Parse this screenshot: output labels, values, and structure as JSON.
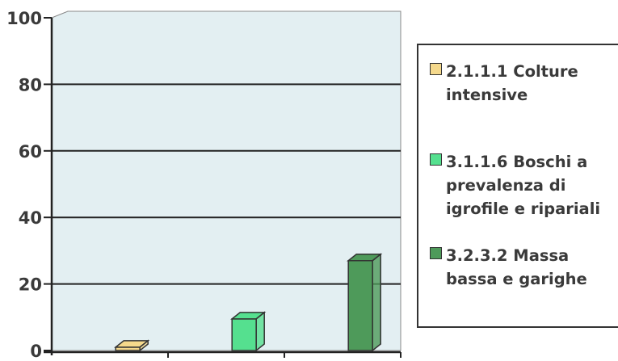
{
  "chart_data": {
    "type": "bar",
    "ylim": [
      0,
      100
    ],
    "y_ticks": [
      "0",
      "20",
      "40",
      "60",
      "80",
      "100"
    ],
    "grid": true,
    "legend_position": "right",
    "series": [
      {
        "name": "2.1.1.1 Colture intensive",
        "value": 1,
        "color": "#f5d98c"
      },
      {
        "name": "3.1.1.6 Boschi a prevalenza di igrofile e ripariali",
        "value": 9.5,
        "color": "#55e08f"
      },
      {
        "name": "3.2.3.2 Massa bassa e garighe",
        "value": 27,
        "color": "#4e9a5a"
      }
    ]
  }
}
